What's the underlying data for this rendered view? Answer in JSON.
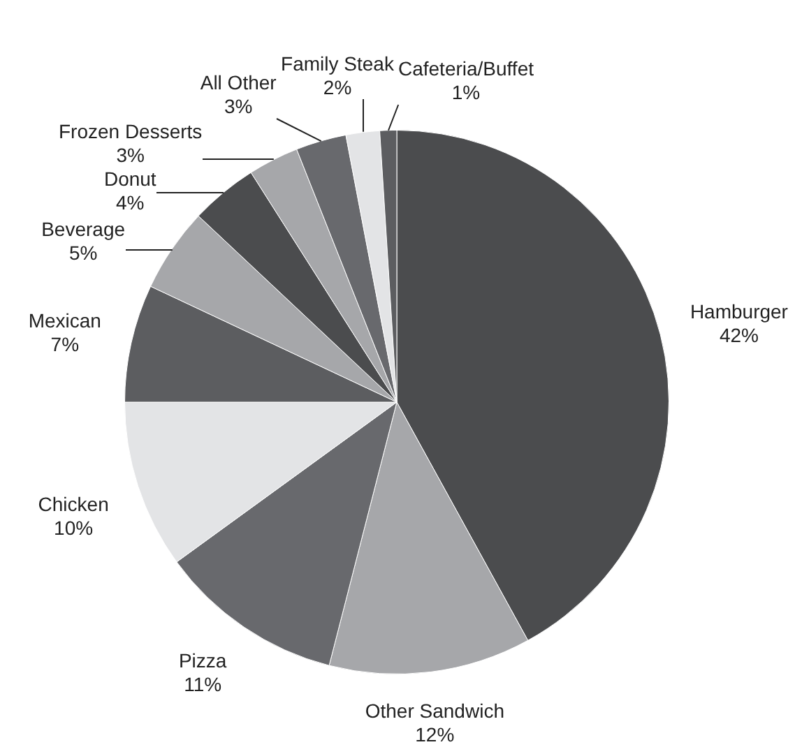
{
  "chart_data": {
    "type": "pie",
    "categories": [
      "Hamburger",
      "Other Sandwich",
      "Pizza",
      "Chicken",
      "Mexican",
      "Beverage",
      "Donut",
      "Frozen Desserts",
      "All Other",
      "Family Steak",
      "Cafeteria/Buffet"
    ],
    "values": [
      42,
      12,
      11,
      10,
      7,
      5,
      4,
      3,
      3,
      2,
      1
    ],
    "value_labels": [
      "42%",
      "12%",
      "11%",
      "10%",
      "7%",
      "5%",
      "4%",
      "3%",
      "3%",
      "2%",
      "1%"
    ],
    "colors": [
      "#4b4c4e",
      "#a6a7aa",
      "#68696d",
      "#e3e4e6",
      "#5c5d60",
      "#a6a7aa",
      "#4b4c4e",
      "#a6a7aa",
      "#68696d",
      "#e3e4e6",
      "#5c5d60"
    ],
    "legend": false
  }
}
